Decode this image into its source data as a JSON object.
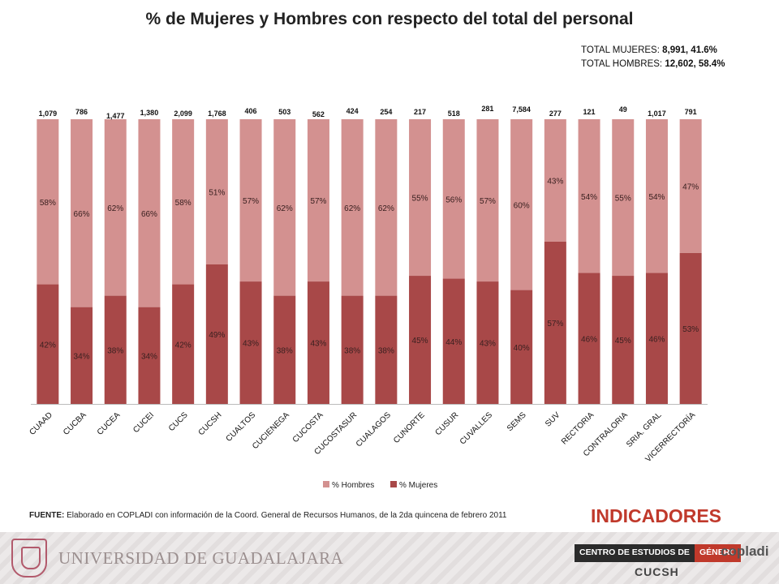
{
  "title": "% de Mujeres  y Hombres con respecto del total del personal",
  "totals": {
    "mujeres_label": "TOTAL MUJERES:",
    "mujeres_value": "8,991,  41.6%",
    "hombres_label": "TOTAL HOMBRES:",
    "hombres_value": "12,602,  58.4%"
  },
  "chart_data": {
    "type": "bar",
    "stacked": true,
    "title": "% de Mujeres  y Hombres con respecto del total del personal",
    "categories": [
      "CUAAD",
      "CUCBA",
      "CUCEA",
      "CUCEI",
      "CUCS",
      "CUCSH",
      "CUALTOS",
      "CUCIENEGA",
      "CUCOSTA",
      "CUCOSTASUR",
      "CUALAGOS",
      "CUNORTE",
      "CUSUR",
      "CUVALLES",
      "SEMS",
      "SUV",
      "RECTORIA",
      "CONTRALORIA",
      "SRIA. GRAL",
      "VICERRECTORÍA"
    ],
    "top_labels": [
      "1,079",
      "786",
      "1,477",
      "1,380",
      "2,099",
      "1,768",
      "406",
      "503",
      "562",
      "424",
      "254",
      "217",
      "518",
      "281",
      "7,584",
      "277",
      "121",
      "49",
      "1,017",
      "791"
    ],
    "series": [
      {
        "name": "% Mujeres",
        "color": "#a84848",
        "values": [
          42,
          34,
          38,
          34,
          42,
          49,
          43,
          38,
          43,
          38,
          38,
          45,
          44,
          43,
          40,
          57,
          46,
          45,
          46,
          53
        ],
        "labels": [
          "42%",
          "34%",
          "38%",
          "34%",
          "42%",
          "49%",
          "43%",
          "38%",
          "43%",
          "38%",
          "38%",
          "45%",
          "44%",
          "43%",
          "40%",
          "57%",
          "46%",
          "45%",
          "46%",
          "53%"
        ]
      },
      {
        "name": "% Hombres",
        "color": "#d39190",
        "values": [
          58,
          66,
          62,
          66,
          58,
          51,
          57,
          62,
          57,
          62,
          62,
          55,
          56,
          57,
          60,
          43,
          54,
          55,
          54,
          47
        ],
        "labels": [
          "58%",
          "66%",
          "62%",
          "66%",
          "58%",
          "51%",
          "57%",
          "62%",
          "57%",
          "62%",
          "62%",
          "55%",
          "56%",
          "57%",
          "60%",
          "43%",
          "54%",
          "55%",
          "54%",
          "47%"
        ]
      }
    ],
    "ylim": [
      0,
      100
    ],
    "legend_items": [
      "% Hombres",
      "% Mujeres"
    ],
    "legend_position": "bottom"
  },
  "fuente": {
    "label": "FUENTE:",
    "text": " Elaborado en COPLADI con información de la Coord. General de Recursos Humanos, de la 2da quincena de febrero 2011"
  },
  "indicadores": "INDICADORES",
  "footer": {
    "universidad": "UNIVERSIDAD DE GUADALAJARA",
    "centro_a": "CENTRO DE ESTUDIOS DE",
    "centro_b": "GÉNERO",
    "copladi": "copladi",
    "cucsh": "CUCSH"
  }
}
